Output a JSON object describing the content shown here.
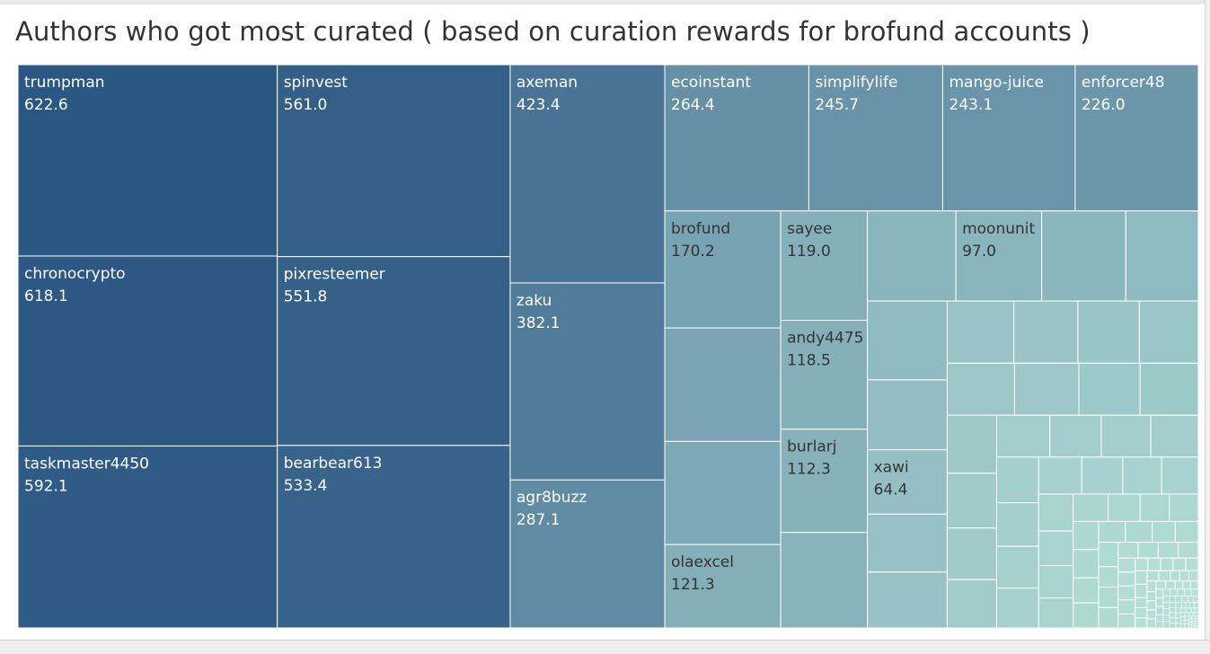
{
  "chart_data": {
    "type": "treemap",
    "title": "Authors who got most curated ( based on curation rewards for brofund accounts )",
    "color_scale": [
      "#b7e1d8",
      "#2b5783"
    ],
    "labeled_items": [
      {
        "name": "trumpman",
        "value": "622.6"
      },
      {
        "name": "chronocrypto",
        "value": "618.1"
      },
      {
        "name": "taskmaster4450",
        "value": "592.1"
      },
      {
        "name": "spinvest",
        "value": "561.0"
      },
      {
        "name": "pixresteemer",
        "value": "551.8"
      },
      {
        "name": "bearbear613",
        "value": "533.4"
      },
      {
        "name": "axeman",
        "value": "423.4"
      },
      {
        "name": "zaku",
        "value": "382.1"
      },
      {
        "name": "agr8buzz",
        "value": "287.1"
      },
      {
        "name": "ecoinstant",
        "value": "264.4"
      },
      {
        "name": "simplifylife",
        "value": "245.7"
      },
      {
        "name": "mango-juice",
        "value": "243.1"
      },
      {
        "name": "enforcer48",
        "value": "226.0"
      },
      {
        "name": "brofund",
        "value": "170.2"
      },
      {
        "name": "olaexcel",
        "value": "121.3"
      },
      {
        "name": "sayee",
        "value": "119.0"
      },
      {
        "name": "andy4475",
        "value": "118.5"
      },
      {
        "name": "burlarj",
        "value": "112.3"
      },
      {
        "name": "moonunit",
        "value": "97.0"
      },
      {
        "name": "xawi",
        "value": "64.4"
      }
    ],
    "unlabeled_values": [
      165,
      150,
      104,
      100,
      95,
      82,
      79,
      70,
      58,
      56,
      52,
      50,
      48,
      46,
      44,
      42,
      40,
      38,
      36,
      34,
      32,
      30,
      28,
      27,
      26,
      25,
      24,
      23,
      22,
      21,
      20,
      19,
      18,
      17,
      16,
      15,
      14,
      13,
      12,
      11,
      10,
      10,
      9,
      9,
      8,
      8,
      7,
      7,
      6,
      6,
      6,
      5,
      5,
      5,
      4,
      4,
      4,
      4,
      3,
      3,
      3,
      3,
      3,
      2,
      2,
      2,
      2,
      2,
      2,
      2,
      1.5,
      1.5,
      1.5,
      1.5,
      1.5,
      1.2,
      1.2,
      1.2,
      1.2,
      1,
      1,
      1,
      1,
      1,
      1,
      0.8,
      0.8,
      0.8,
      0.8,
      0.8,
      0.8,
      0.6,
      0.6,
      0.6,
      0.6,
      0.6,
      0.6,
      0.6,
      0.5,
      0.5,
      0.5,
      0.5,
      0.5,
      0.5,
      0.5,
      0.5,
      0.4,
      0.4,
      0.4,
      0.4,
      0.4,
      0.4,
      0.4,
      0.4,
      0.3,
      0.3,
      0.3,
      0.3,
      0.3,
      0.3,
      0.3,
      0.3,
      0.3,
      0.3,
      0.2,
      0.2,
      0.2,
      0.2,
      0.2,
      0.2,
      0.2,
      0.2,
      0.2,
      0.2,
      0.2,
      0.2,
      0.1,
      0.1,
      0.1,
      0.1,
      0.1,
      0.1,
      0.1,
      0.1,
      0.1,
      0.1,
      0.1,
      0.1,
      0.1,
      0.1
    ]
  }
}
